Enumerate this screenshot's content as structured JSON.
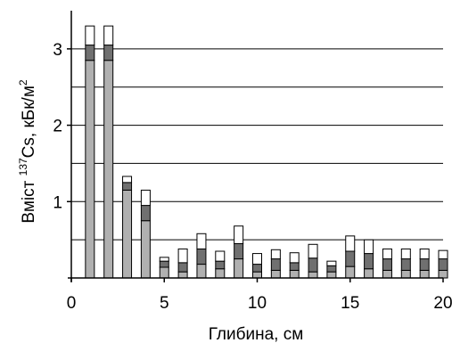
{
  "chart_data": {
    "type": "bar",
    "stacked": true,
    "xlabel": "Глибина, см",
    "ylabel_prefix": "Вміст  ",
    "ylabel_sup": "137",
    "ylabel_main": "Cs, кБк/м",
    "ylabel_sup2": "2",
    "x_ticks": [
      "0",
      "5",
      "10",
      "15",
      "20"
    ],
    "y_ticks": [
      "1",
      "2",
      "3"
    ],
    "xlim": [
      0,
      20
    ],
    "ylim": [
      0,
      3.5
    ],
    "grid_y": [
      0.5,
      1,
      1.5,
      2,
      2.5,
      3
    ],
    "grid": "horizontal",
    "colors": {
      "lower": "#b0b0b0",
      "middle": "#707070",
      "upper": "#ffffff",
      "grid": "#000000"
    },
    "x": [
      1,
      2,
      3,
      4,
      5,
      6,
      7,
      8,
      9,
      10,
      11,
      12,
      13,
      14,
      15,
      16,
      17,
      18,
      19,
      20
    ],
    "series": [
      {
        "values": [
          2.85,
          2.85,
          1.15,
          0.75,
          0.14,
          0.08,
          0.18,
          0.12,
          0.25,
          0.08,
          0.1,
          0.1,
          0.08,
          0.08,
          0.15,
          0.12,
          0.1,
          0.1,
          0.1,
          0.1
        ]
      },
      {
        "values": [
          0.2,
          0.2,
          0.1,
          0.2,
          0.08,
          0.12,
          0.2,
          0.1,
          0.2,
          0.1,
          0.15,
          0.1,
          0.18,
          0.08,
          0.2,
          0.2,
          0.15,
          0.15,
          0.15,
          0.15
        ]
      },
      {
        "values": [
          0.25,
          0.25,
          0.08,
          0.2,
          0.05,
          0.18,
          0.2,
          0.13,
          0.23,
          0.14,
          0.12,
          0.13,
          0.18,
          0.06,
          0.2,
          0.18,
          0.13,
          0.13,
          0.13,
          0.11
        ]
      }
    ]
  }
}
